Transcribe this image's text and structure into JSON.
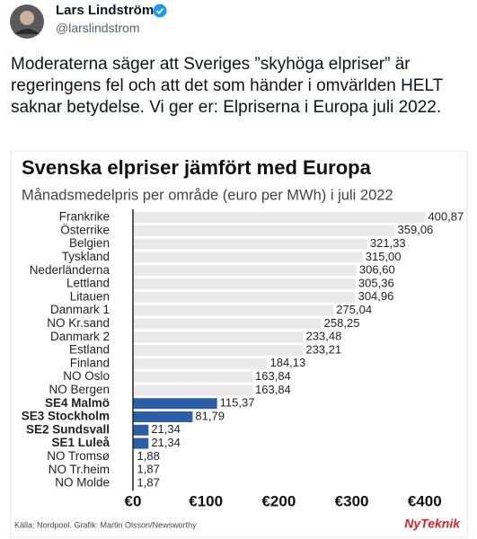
{
  "author": {
    "name": "Lars Lindström",
    "handle": "@larslindstrom"
  },
  "tweet_text": "Moderaterna säger att Sveriges ”skyhöga elpriser” är regeringens fel och att det som händer i omvärlden HELT saknar betydelse. Vi ger er: Elpriserna i Europa juli 2022.",
  "chart_data": {
    "type": "bar",
    "orientation": "horizontal",
    "title": "Svenska elpriser jämfört med Europa",
    "subtitle": "Månadsmedelpris per område (euro per MWh) i juli 2022",
    "categories": [
      "Frankrike",
      "Österrike",
      "Belgien",
      "Tyskland",
      "Nederländerna",
      "Lettland",
      "Litauen",
      "Danmark 1",
      "NO Kr.sand",
      "Danmark 2",
      "Estland",
      "Finland",
      "NO Oslo",
      "NO Bergen",
      "SE4 Malmö",
      "SE3 Stockholm",
      "SE2 Sundsvall",
      "SE1 Luleå",
      "NO Tromsø",
      "NO Tr.heim",
      "NO Molde"
    ],
    "values": [
      400.87,
      359.06,
      321.33,
      315.0,
      306.6,
      305.36,
      304.96,
      275.04,
      258.25,
      233.48,
      233.21,
      184.13,
      163.84,
      163.84,
      115.37,
      81.79,
      21.34,
      21.34,
      1.88,
      1.87,
      1.87
    ],
    "value_labels": [
      "400,87",
      "359,06",
      "321,33",
      "315,00",
      "306,60",
      "305,36",
      "304,96",
      "275,04",
      "258,25",
      "233,48",
      "233,21",
      "184,13",
      "163,84",
      "163,84",
      "115,37",
      "81,79",
      "21,34",
      "21,34",
      "1,88",
      "1,87",
      "1,87"
    ],
    "highlighted": [
      false,
      false,
      false,
      false,
      false,
      false,
      false,
      false,
      false,
      false,
      false,
      false,
      false,
      false,
      true,
      true,
      true,
      true,
      false,
      false,
      false
    ],
    "color": "#e9e9e9",
    "highlight_color": "#2c5ea8",
    "xlim": [
      0,
      420
    ],
    "xticks": [
      {
        "value": 0,
        "label": "€0"
      },
      {
        "value": 100,
        "label": "€100"
      },
      {
        "value": 200,
        "label": "€200"
      },
      {
        "value": 300,
        "label": "€300"
      },
      {
        "value": 400,
        "label": "€400"
      }
    ],
    "grid": false,
    "source": "Källa: Nordpool. Grafik: Martin Olsson/Newsworthy",
    "logo": "NyTeknik"
  }
}
